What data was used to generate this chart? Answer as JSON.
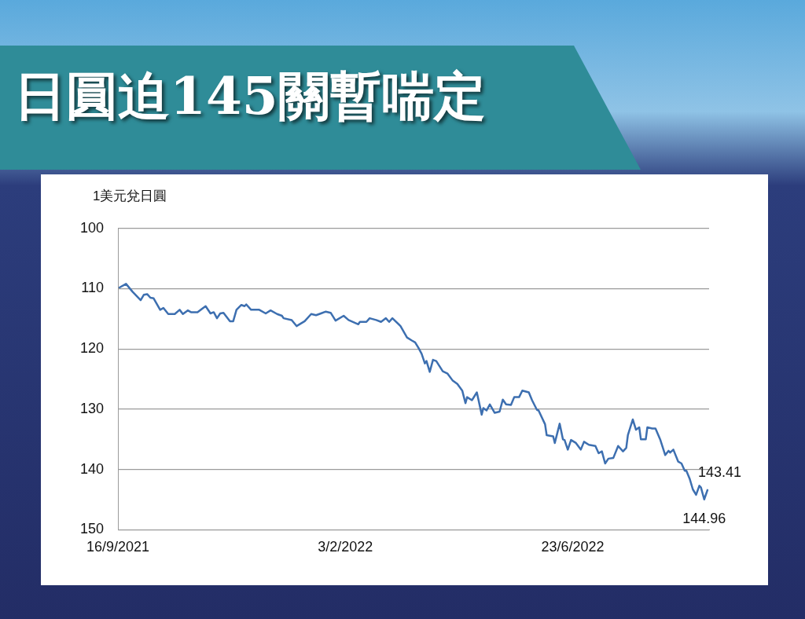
{
  "chart_data": {
    "type": "line",
    "title": "日圓迫145關暫喘定",
    "ylabel": "1美元兌日圓",
    "xlim": [
      "2021-09-16",
      "2022-09-15"
    ],
    "xticks": [
      {
        "value": "2021-09-16",
        "label": "16/9/2021"
      },
      {
        "value": "2022-02-03",
        "label": "3/2/2022"
      },
      {
        "value": "2022-06-23",
        "label": "23/6/2022"
      }
    ],
    "ylim": [
      150,
      100
    ],
    "yticks": [
      100,
      110,
      120,
      130,
      140,
      150
    ],
    "grid": "y",
    "legend": false,
    "marker": "none",
    "line_style": "solid",
    "series": [
      {
        "color": "#3d6fb0",
        "x": [
          "2021-09-17",
          "2021-09-21",
          "2021-09-25",
          "2021-09-30",
          "2021-10-02",
          "2021-10-04",
          "2021-10-06",
          "2021-10-08",
          "2021-10-12",
          "2021-10-14",
          "2021-10-17",
          "2021-10-21",
          "2021-10-24",
          "2021-10-26",
          "2021-10-29",
          "2021-10-31",
          "2021-11-04",
          "2021-11-09",
          "2021-11-12",
          "2021-11-14",
          "2021-11-16",
          "2021-11-18",
          "2021-11-20",
          "2021-11-24",
          "2021-11-26",
          "2021-11-28",
          "2021-12-01",
          "2021-12-03",
          "2021-12-04",
          "2021-12-07",
          "2021-12-10",
          "2021-12-12",
          "2021-12-16",
          "2021-12-19",
          "2021-12-23",
          "2021-12-26",
          "2021-12-27",
          "2022-01-01",
          "2022-01-04",
          "2022-01-09",
          "2022-01-13",
          "2022-01-16",
          "2022-01-19",
          "2022-01-22",
          "2022-01-25",
          "2022-01-28",
          "2022-02-02",
          "2022-02-05",
          "2022-02-11",
          "2022-02-12",
          "2022-02-16",
          "2022-02-18",
          "2022-02-22",
          "2022-02-25",
          "2022-02-28",
          "2022-03-02",
          "2022-03-04",
          "2022-03-09",
          "2022-03-13",
          "2022-03-16",
          "2022-03-18",
          "2022-03-20",
          "2022-03-22",
          "2022-03-24",
          "2022-03-25",
          "2022-03-27",
          "2022-03-29",
          "2022-03-31",
          "2022-04-04",
          "2022-04-07",
          "2022-04-10",
          "2022-04-13",
          "2022-04-16",
          "2022-04-18",
          "2022-04-19",
          "2022-04-22",
          "2022-04-25",
          "2022-04-28",
          "2022-04-29",
          "2022-05-01",
          "2022-05-03",
          "2022-05-06",
          "2022-05-09",
          "2022-05-11",
          "2022-05-13",
          "2022-05-16",
          "2022-05-18",
          "2022-05-21",
          "2022-05-23",
          "2022-05-27",
          "2022-05-29",
          "2022-06-01",
          "2022-06-02",
          "2022-06-06",
          "2022-06-07",
          "2022-06-11",
          "2022-06-12",
          "2022-06-15",
          "2022-06-17",
          "2022-06-18",
          "2022-06-20",
          "2022-06-22",
          "2022-06-25",
          "2022-06-28",
          "2022-06-30",
          "2022-07-03",
          "2022-07-07",
          "2022-07-09",
          "2022-07-11",
          "2022-07-13",
          "2022-07-15",
          "2022-07-18",
          "2022-07-21",
          "2022-07-24",
          "2022-07-26",
          "2022-07-27",
          "2022-07-30",
          "2022-08-01",
          "2022-08-03",
          "2022-08-04",
          "2022-08-07",
          "2022-08-08",
          "2022-08-11",
          "2022-08-13",
          "2022-08-16",
          "2022-08-19",
          "2022-08-21",
          "2022-08-22",
          "2022-08-24",
          "2022-08-27",
          "2022-08-29",
          "2022-08-31",
          "2022-09-01",
          "2022-09-03",
          "2022-09-05",
          "2022-09-07",
          "2022-09-09",
          "2022-09-10",
          "2022-09-12",
          "2022-09-14"
        ],
        "values": [
          109.8,
          109.2,
          110.5,
          111.9,
          111.0,
          110.9,
          111.5,
          111.6,
          113.5,
          113.2,
          114.2,
          114.2,
          113.5,
          114.2,
          113.6,
          113.9,
          113.9,
          112.9,
          114.1,
          113.9,
          114.9,
          114.1,
          114.0,
          115.4,
          115.4,
          113.5,
          112.7,
          112.9,
          112.6,
          113.5,
          113.5,
          113.5,
          114.1,
          113.6,
          114.2,
          114.5,
          114.9,
          115.2,
          116.2,
          115.4,
          114.2,
          114.4,
          114.1,
          113.8,
          114.0,
          115.3,
          114.5,
          115.2,
          115.9,
          115.5,
          115.5,
          114.9,
          115.2,
          115.5,
          114.9,
          115.5,
          114.9,
          116.2,
          118.1,
          118.6,
          118.9,
          119.8,
          120.8,
          122.4,
          122.0,
          123.8,
          121.8,
          122.0,
          123.7,
          124.1,
          125.2,
          125.8,
          126.9,
          129.0,
          128.0,
          128.5,
          127.2,
          130.9,
          129.8,
          130.2,
          129.2,
          130.6,
          130.4,
          128.4,
          129.2,
          129.3,
          128.0,
          128.0,
          126.9,
          127.2,
          128.5,
          130.1,
          130.2,
          132.5,
          134.3,
          134.5,
          135.6,
          132.4,
          135.0,
          135.1,
          136.7,
          135.1,
          135.6,
          136.7,
          135.4,
          135.9,
          136.1,
          137.3,
          137.0,
          139.0,
          138.2,
          138.1,
          136.1,
          137.0,
          136.4,
          134.3,
          131.7,
          133.4,
          133.0,
          135.0,
          135.0,
          133.0,
          133.2,
          133.2,
          135.1,
          137.6,
          136.9,
          137.2,
          136.7,
          138.7,
          139.0,
          140.2,
          140.2,
          141.5,
          143.3,
          144.2,
          142.7,
          143.0,
          144.96,
          143.41
        ]
      }
    ],
    "annotations": [
      {
        "text": "143.41",
        "x": "2022-09-14",
        "y": 143.41
      },
      {
        "text": "144.96",
        "x": "2022-09-12",
        "y": 144.96
      }
    ]
  }
}
